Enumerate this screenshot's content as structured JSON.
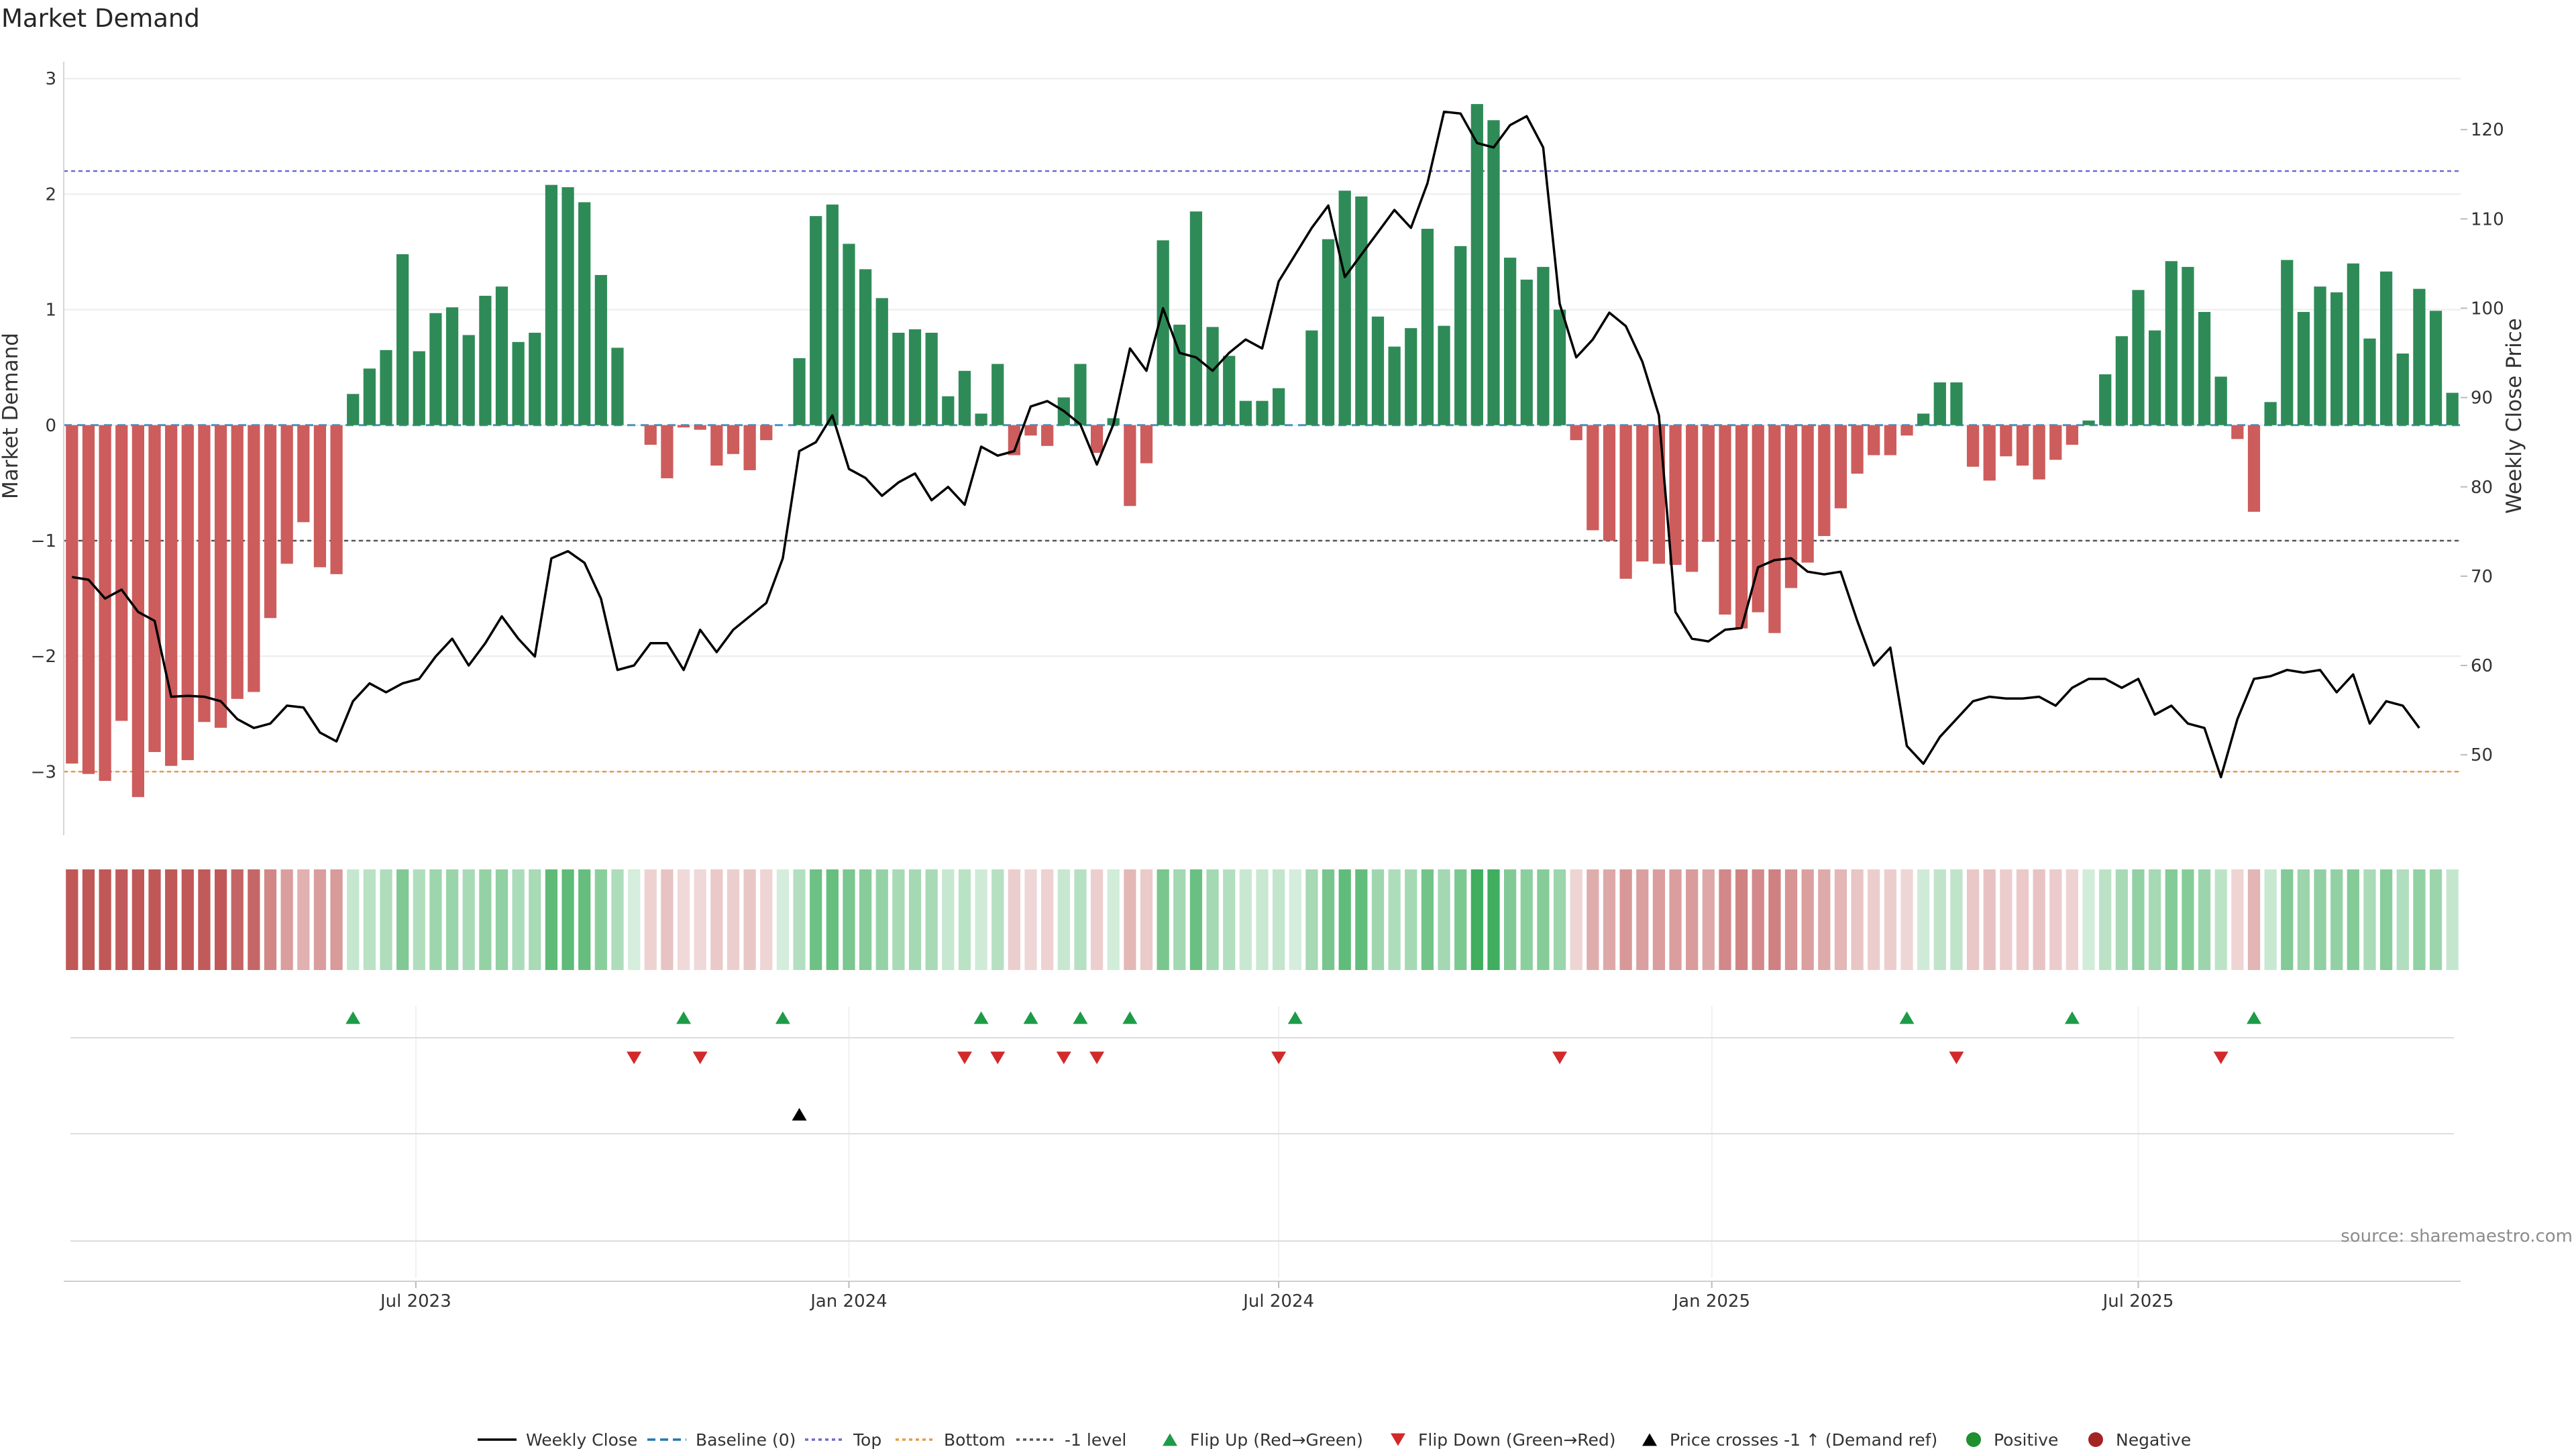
{
  "chart_data": {
    "type": "bar",
    "title": "Market Demand",
    "ylabel": "Market Demand",
    "y2label": "Weekly Close Price",
    "ylim": [
      -3.55,
      3.1
    ],
    "y2lim": [
      41,
      127
    ],
    "yticks": [
      3,
      2,
      1,
      0,
      -1,
      -2,
      -3
    ],
    "y2ticks": [
      120,
      110,
      100,
      90,
      80,
      70,
      60,
      50
    ],
    "levels": {
      "top": 2.2,
      "bottom": -3.0,
      "minus_one": -1.0,
      "baseline": 0
    },
    "xticks": [
      {
        "label": "Jul 2023",
        "index": 21.3
      },
      {
        "label": "Jan 2024",
        "index": 47.5
      },
      {
        "label": "Jul 2024",
        "index": 73.5
      },
      {
        "label": "Jan 2025",
        "index": 99.7
      },
      {
        "label": "Jul 2025",
        "index": 125.5
      }
    ],
    "demand": [
      -2.93,
      -3.02,
      -3.08,
      -2.56,
      -3.22,
      -2.83,
      -2.95,
      -2.9,
      -2.57,
      -2.62,
      -2.37,
      -2.31,
      -1.67,
      -1.2,
      -0.84,
      -1.23,
      -1.29,
      0.27,
      0.49,
      0.65,
      1.48,
      0.64,
      0.97,
      1.02,
      0.78,
      1.12,
      1.2,
      0.72,
      0.8,
      2.08,
      2.06,
      1.93,
      1.3,
      0.67,
      0.0,
      -0.17,
      -0.46,
      -0.02,
      -0.04,
      -0.35,
      -0.25,
      -0.39,
      -0.13,
      0.0,
      0.58,
      1.81,
      1.91,
      1.57,
      1.35,
      1.1,
      0.8,
      0.83,
      0.8,
      0.25,
      0.47,
      0.1,
      0.53,
      -0.26,
      -0.09,
      -0.18,
      0.24,
      0.53,
      -0.24,
      0.06,
      -0.7,
      -0.33,
      1.6,
      0.87,
      1.85,
      0.85,
      0.6,
      0.21,
      0.21,
      0.32,
      0.0,
      0.82,
      1.61,
      2.03,
      1.98,
      0.94,
      0.68,
      0.84,
      1.7,
      0.86,
      1.55,
      2.78,
      2.64,
      1.45,
      1.26,
      1.37,
      1.0,
      -0.13,
      -0.91,
      -1.0,
      -1.33,
      -1.18,
      -1.2,
      -1.21,
      -1.27,
      -1.01,
      -1.64,
      -1.76,
      -1.62,
      -1.8,
      -1.41,
      -1.19,
      -0.96,
      -0.72,
      -0.42,
      -0.26,
      -0.26,
      -0.09,
      0.1,
      0.37,
      0.37,
      -0.36,
      -0.48,
      -0.27,
      -0.35,
      -0.47,
      -0.3,
      -0.17,
      0.04,
      0.44,
      0.77,
      1.17,
      0.82,
      1.42,
      1.37,
      0.98,
      0.42,
      -0.12,
      -0.75,
      0.2,
      1.43,
      0.98,
      1.2,
      1.15,
      1.4,
      0.75,
      1.33,
      0.62,
      1.18,
      0.99,
      0.28
    ],
    "price": [
      69.9,
      69.6,
      67.5,
      68.5,
      66.0,
      65.0,
      56.5,
      56.6,
      56.5,
      56.0,
      54.0,
      53.0,
      53.5,
      55.5,
      55.3,
      52.5,
      51.5,
      56.0,
      58.0,
      57.0,
      58.0,
      58.5,
      61.0,
      63.0,
      60.0,
      62.5,
      65.5,
      63.0,
      61.0,
      72.0,
      72.8,
      71.5,
      67.5,
      59.5,
      60.0,
      62.5,
      62.5,
      59.5,
      64.0,
      61.5,
      64.0,
      65.5,
      67.0,
      72.0,
      84.0,
      85.0,
      88.0,
      82.0,
      81.0,
      79.0,
      80.5,
      81.5,
      78.5,
      80.0,
      78.0,
      84.5,
      83.5,
      84.0,
      89.0,
      89.6,
      88.5,
      87.0,
      82.5,
      87.0,
      95.5,
      93.0,
      100.0,
      95.0,
      94.5,
      93.0,
      95.0,
      96.5,
      95.5,
      103.0,
      106.0,
      109.0,
      111.5,
      103.5,
      106.0,
      108.5,
      111.0,
      109.0,
      114.0,
      122.0,
      121.8,
      118.5,
      118.0,
      120.5,
      121.5,
      118.0,
      100.5,
      94.5,
      96.5,
      99.5,
      98.0,
      94.0,
      88.0,
      66.0,
      63.0,
      62.7,
      64.0,
      64.2,
      71.0,
      71.8,
      72.0,
      70.5,
      70.2,
      70.5,
      65.0,
      60.0,
      62.0,
      51.0,
      49.0,
      52.0,
      54.0,
      56.0,
      56.5,
      56.3,
      56.3,
      56.5,
      55.5,
      57.5,
      58.5,
      58.5,
      57.5,
      58.5,
      54.5,
      55.5,
      53.5,
      53.0,
      47.5,
      54.0,
      58.5,
      58.8,
      59.5,
      59.2,
      59.5,
      57.0,
      59.0,
      53.5,
      56.0,
      55.5,
      53.0
    ],
    "flip_up": [
      17,
      37,
      43,
      55,
      58,
      61,
      64,
      74,
      111,
      121,
      132
    ],
    "flip_down": [
      34,
      38,
      54,
      56,
      60,
      62,
      73,
      90,
      114,
      130
    ],
    "price_cross_up": [
      44
    ],
    "legend": [
      "Weekly Close",
      "Baseline (0)",
      "Top",
      "Bottom",
      "-1 level",
      "Flip Up (Red→Green)",
      "Flip Down (Green→Red)",
      "Price crosses -1 ↑ (Demand ref)",
      "Positive",
      "Negative"
    ],
    "colors": {
      "positive": "#2e8b57",
      "negative": "#cd5c5c",
      "price": "#000000",
      "baseline": "#1f77b4",
      "top": "#6a6ad0",
      "bottom": "#e69a45",
      "minus_one": "#555555",
      "flip_up": "#1e9b48",
      "flip_down": "#d22a2a",
      "positive_dot": "#1f8f2f",
      "negative_dot": "#a42424"
    },
    "source": "source: sharemaestro.com"
  }
}
